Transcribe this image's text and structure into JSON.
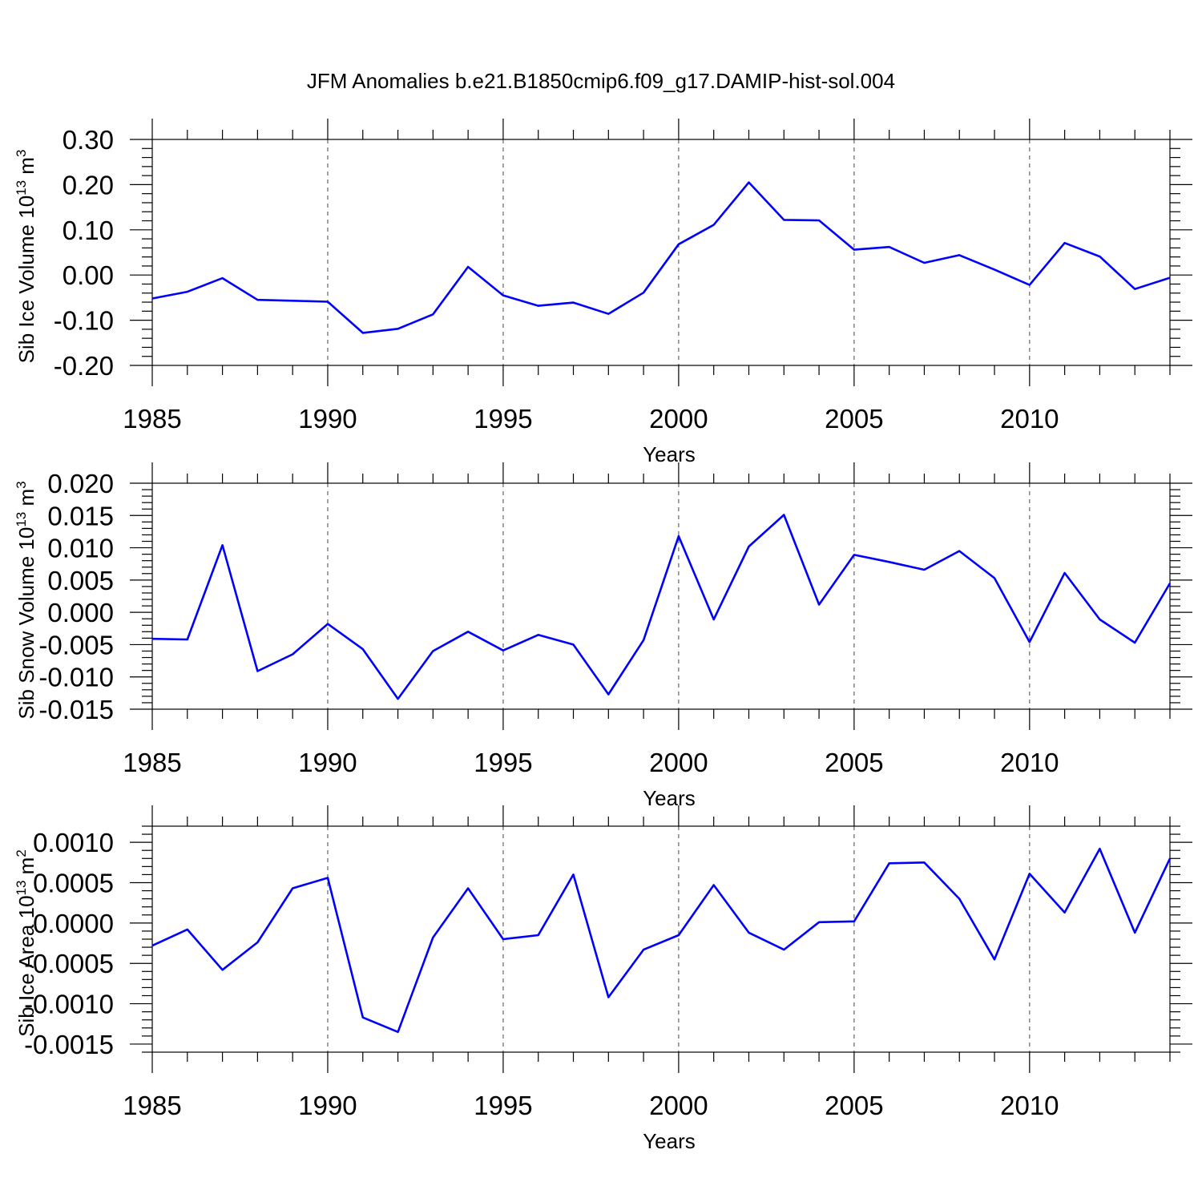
{
  "figure_title": "JFM Anomalies b.e21.B1850cmip6.f09_g17.DAMIP-hist-sol.004",
  "line_color": "#0000ff",
  "chart_data": [
    {
      "type": "line",
      "title": "JFM Anomalies b.e21.B1850cmip6.f09_g17.DAMIP-hist-sol.004",
      "xlabel": "Years",
      "ylabel": {
        "base": "Sib Ice Volume 10",
        "exp": "13",
        "unit": "m",
        "unit_exp": "3"
      },
      "xlim": [
        1985,
        2014
      ],
      "ylim": [
        -0.2,
        0.3
      ],
      "xticks": [
        1985,
        1990,
        1995,
        2000,
        2005,
        2010
      ],
      "xtick_labels": [
        "1985",
        "1990",
        "1995",
        "2000",
        "2005",
        "2010"
      ],
      "yticks": [
        0.3,
        0.2,
        0.1,
        0.0,
        -0.1,
        -0.2
      ],
      "ytick_labels": [
        "0.30",
        "0.20",
        "0.10",
        "0.00",
        "-0.10",
        "-0.20"
      ],
      "y_minor_step": 0.02,
      "grid": "dashed vertical at major x ticks",
      "x": [
        1985,
        1986,
        1987,
        1988,
        1989,
        1990,
        1991,
        1992,
        1993,
        1994,
        1995,
        1996,
        1997,
        1998,
        1999,
        2000,
        2001,
        2002,
        2003,
        2004,
        2005,
        2006,
        2007,
        2008,
        2009,
        2010,
        2011,
        2012,
        2013,
        2014
      ],
      "series": [
        {
          "name": "Sib Ice Volume",
          "values": [
            -0.052,
            -0.037,
            -0.007,
            -0.055,
            -0.057,
            -0.059,
            -0.128,
            -0.119,
            -0.087,
            0.018,
            -0.045,
            -0.068,
            -0.061,
            -0.086,
            -0.039,
            0.068,
            0.111,
            0.205,
            0.122,
            0.121,
            0.056,
            0.062,
            0.027,
            0.044,
            0.012,
            -0.022,
            0.071,
            0.041,
            -0.031,
            -0.006
          ]
        }
      ]
    },
    {
      "type": "line",
      "xlabel": "Years",
      "ylabel": {
        "base": "Sib Snow Volume 10",
        "exp": "13",
        "unit": "m",
        "unit_exp": "3"
      },
      "xlim": [
        1985,
        2014
      ],
      "ylim": [
        -0.015,
        0.02
      ],
      "xticks": [
        1985,
        1990,
        1995,
        2000,
        2005,
        2010
      ],
      "xtick_labels": [
        "1985",
        "1990",
        "1995",
        "2000",
        "2005",
        "2010"
      ],
      "yticks": [
        0.02,
        0.015,
        0.01,
        0.005,
        0.0,
        -0.005,
        -0.01,
        -0.015
      ],
      "ytick_labels": [
        "0.020",
        "0.015",
        "0.010",
        "0.005",
        "0.000",
        "-0.005",
        "-0.010",
        "-0.015"
      ],
      "y_minor_step": 0.001,
      "grid": "dashed vertical at major x ticks",
      "x": [
        1985,
        1986,
        1987,
        1988,
        1989,
        1990,
        1991,
        1992,
        1993,
        1994,
        1995,
        1996,
        1997,
        1998,
        1999,
        2000,
        2001,
        2002,
        2003,
        2004,
        2005,
        2006,
        2007,
        2008,
        2009,
        2010,
        2011,
        2012,
        2013,
        2014
      ],
      "series": [
        {
          "name": "Sib Snow Volume",
          "values": [
            -0.0041,
            -0.0042,
            0.0104,
            -0.0091,
            -0.0065,
            -0.0018,
            -0.0057,
            -0.0134,
            -0.006,
            -0.003,
            -0.0059,
            -0.0035,
            -0.005,
            -0.0127,
            -0.0043,
            0.0118,
            -0.0011,
            0.0102,
            0.0151,
            0.0012,
            0.0089,
            0.0078,
            0.0066,
            0.0095,
            0.0053,
            -0.0046,
            0.0061,
            -0.0011,
            -0.0047,
            0.0045
          ]
        }
      ]
    },
    {
      "type": "line",
      "xlabel": "Years",
      "ylabel": {
        "base": "Sib Ice Area 10",
        "exp": "13",
        "unit": "m",
        "unit_exp": "2"
      },
      "xlim": [
        1985,
        2014
      ],
      "ylim": [
        -0.0016,
        0.0012
      ],
      "xticks": [
        1985,
        1990,
        1995,
        2000,
        2005,
        2010
      ],
      "xtick_labels": [
        "1985",
        "1990",
        "1995",
        "2000",
        "2005",
        "2010"
      ],
      "yticks": [
        0.001,
        0.0005,
        0.0,
        -0.0005,
        -0.001,
        -0.0015
      ],
      "ytick_labels": [
        "0.0010",
        "0.0005",
        "0.0000",
        "-0.0005",
        "-0.0010",
        "-0.0015"
      ],
      "y_minor_step": 0.0001,
      "grid": "dashed vertical at major x ticks",
      "x": [
        1985,
        1986,
        1987,
        1988,
        1989,
        1990,
        1991,
        1992,
        1993,
        1994,
        1995,
        1996,
        1997,
        1998,
        1999,
        2000,
        2001,
        2002,
        2003,
        2004,
        2005,
        2006,
        2007,
        2008,
        2009,
        2010,
        2011,
        2012,
        2013,
        2014
      ],
      "series": [
        {
          "name": "Sib Ice Area",
          "values": [
            -0.00028,
            -8e-05,
            -0.00058,
            -0.00024,
            0.00043,
            0.00056,
            -0.00117,
            -0.00135,
            -0.00018,
            0.00043,
            -0.0002,
            -0.00015,
            0.0006,
            -0.00092,
            -0.00033,
            -0.00015,
            0.00047,
            -0.00012,
            -0.00033,
            1e-05,
            2e-05,
            0.00074,
            0.00075,
            0.0003,
            -0.00045,
            0.00061,
            0.00013,
            0.00092,
            -0.00012,
            0.0008
          ]
        }
      ]
    }
  ]
}
